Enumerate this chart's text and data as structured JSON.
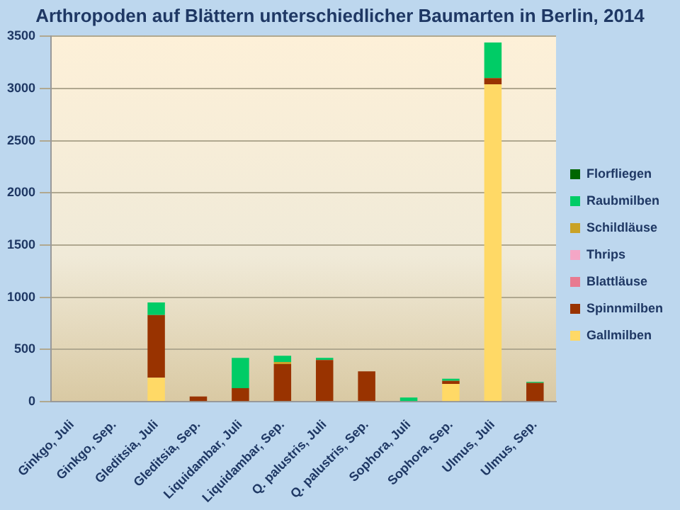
{
  "chart_data": {
    "type": "bar",
    "stacked": true,
    "title": "Arthropoden auf Blättern unterschiedlicher Baumarten in Berlin, 2014",
    "categories": [
      "Ginkgo, Juli",
      "Ginkgo, Sep.",
      "Gleditsia, Juli",
      "Gleditsia, Sep.",
      "Liquidambar, Juli",
      "Liquidambar, Sep.",
      "Q. palustris, Juli",
      "Q. palustris, Sep.",
      "Sophora, Juli",
      "Sophora, Sep.",
      "Ulmus, Juli",
      "Ulmus, Sep."
    ],
    "series": [
      {
        "name": "Gallmilben",
        "color": "#ffd966",
        "values": [
          0,
          0,
          230,
          0,
          0,
          0,
          0,
          0,
          0,
          170,
          3040,
          0
        ]
      },
      {
        "name": "Spinnmilben",
        "color": "#993300",
        "values": [
          0,
          0,
          600,
          50,
          130,
          360,
          400,
          290,
          0,
          30,
          60,
          180
        ]
      },
      {
        "name": "Blattläuse",
        "color": "#e87a90",
        "values": [
          0,
          0,
          0,
          0,
          0,
          0,
          0,
          0,
          0,
          0,
          0,
          0
        ]
      },
      {
        "name": "Thrips",
        "color": "#f4a6c6",
        "values": [
          0,
          0,
          0,
          0,
          0,
          0,
          0,
          0,
          0,
          0,
          0,
          0
        ]
      },
      {
        "name": "Schildläuse",
        "color": "#c9a227",
        "values": [
          0,
          0,
          0,
          0,
          0,
          20,
          0,
          0,
          0,
          0,
          0,
          0
        ]
      },
      {
        "name": "Raubmilben",
        "color": "#00cc66",
        "values": [
          0,
          0,
          120,
          0,
          290,
          60,
          20,
          0,
          40,
          20,
          340,
          10
        ]
      },
      {
        "name": "Florfliegen",
        "color": "#006600",
        "values": [
          0,
          0,
          0,
          0,
          0,
          0,
          0,
          0,
          0,
          0,
          0,
          0
        ]
      }
    ],
    "ylim": [
      0,
      3500
    ],
    "yticks": [
      0,
      500,
      1000,
      1500,
      2000,
      2500,
      3000,
      3500
    ],
    "grid": "y",
    "legend": "right"
  }
}
